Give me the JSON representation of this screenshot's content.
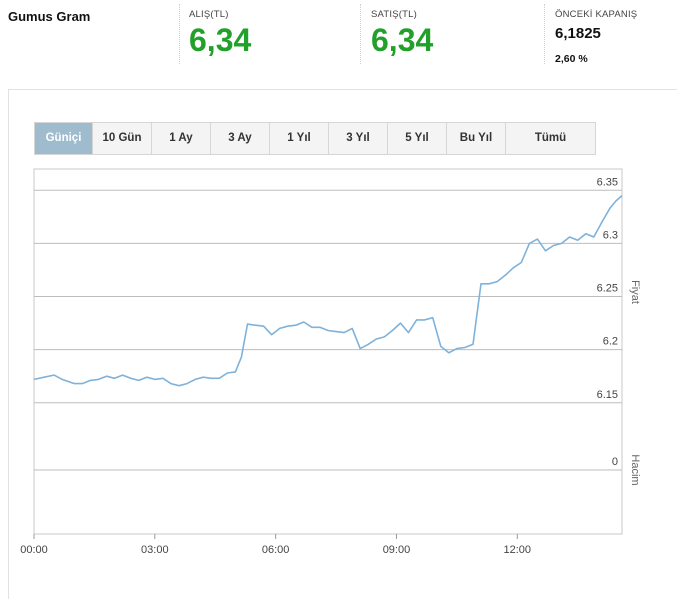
{
  "header": {
    "symbol": "Gumus Gram",
    "bid_label": "ALIŞ(TL)",
    "bid_value": "6,34",
    "ask_label": "SATIŞ(TL)",
    "ask_value": "6,34",
    "prev_close_label": "ÖNCEKİ KAPANIŞ",
    "prev_close_value": "6,1825",
    "change_pct": "2,60 %"
  },
  "tabs": [
    {
      "label": "Güniçi",
      "active": true
    },
    {
      "label": "10 Gün",
      "active": false
    },
    {
      "label": "1 Ay",
      "active": false
    },
    {
      "label": "3 Ay",
      "active": false
    },
    {
      "label": "1 Yıl",
      "active": false
    },
    {
      "label": "3 Yıl",
      "active": false
    },
    {
      "label": "5 Yıl",
      "active": false
    },
    {
      "label": "Bu Yıl",
      "active": false
    },
    {
      "label": "Tümü",
      "active": false
    }
  ],
  "colors": {
    "accent_green": "#21a02a",
    "line": "#7fb2da",
    "tab_active": "#9fbccf"
  },
  "chart_data": {
    "type": "line",
    "price_axis_title": "Fiyat",
    "volume_axis_title": "Hacim",
    "y_ticks": [
      "6.35",
      "6.3",
      "6.25",
      "6.2",
      "6.15"
    ],
    "volume_ticks": [
      "0"
    ],
    "x_ticks": [
      "00:00",
      "03:00",
      "06:00",
      "09:00",
      "12:00"
    ],
    "ylim": [
      6.13,
      6.37
    ],
    "xlim_hours": [
      0,
      14.6
    ],
    "grid": true,
    "series": [
      {
        "x": [
          0,
          0.25,
          0.5,
          0.7,
          1,
          1.2,
          1.4,
          1.6,
          1.8,
          2.0,
          2.2,
          2.4,
          2.6,
          2.8,
          3.0,
          3.2,
          3.4,
          3.6,
          3.8,
          4.0,
          4.2,
          4.4,
          4.6,
          4.8,
          5.0,
          5.15,
          5.3,
          5.5,
          5.7,
          5.9,
          6.1,
          6.3,
          6.5,
          6.7,
          6.9,
          7.1,
          7.3,
          7.5,
          7.7,
          7.9,
          8.1,
          8.3,
          8.5,
          8.7,
          8.9,
          9.1,
          9.3,
          9.5,
          9.7,
          9.9,
          10.1,
          10.3,
          10.5,
          10.7,
          10.9,
          11.1,
          11.3,
          11.5,
          11.7,
          11.9,
          12.1,
          12.3,
          12.5,
          12.7,
          12.9,
          13.1,
          13.3,
          13.5,
          13.7,
          13.9,
          14.1,
          14.3,
          14.45,
          14.6
        ],
        "y": [
          6.172,
          6.174,
          6.176,
          6.172,
          6.168,
          6.168,
          6.171,
          6.172,
          6.175,
          6.173,
          6.176,
          6.173,
          6.171,
          6.174,
          6.172,
          6.173,
          6.168,
          6.166,
          6.168,
          6.172,
          6.174,
          6.173,
          6.173,
          6.178,
          6.179,
          6.193,
          6.224,
          6.223,
          6.222,
          6.214,
          6.22,
          6.222,
          6.223,
          6.226,
          6.221,
          6.221,
          6.218,
          6.217,
          6.216,
          6.22,
          6.201,
          6.205,
          6.21,
          6.212,
          6.218,
          6.225,
          6.216,
          6.228,
          6.228,
          6.23,
          6.203,
          6.197,
          6.201,
          6.202,
          6.205,
          6.262,
          6.262,
          6.264,
          6.27,
          6.277,
          6.282,
          6.3,
          6.304,
          6.293,
          6.298,
          6.3,
          6.306,
          6.303,
          6.309,
          6.306,
          6.32,
          6.333,
          6.34,
          6.345
        ]
      }
    ]
  }
}
